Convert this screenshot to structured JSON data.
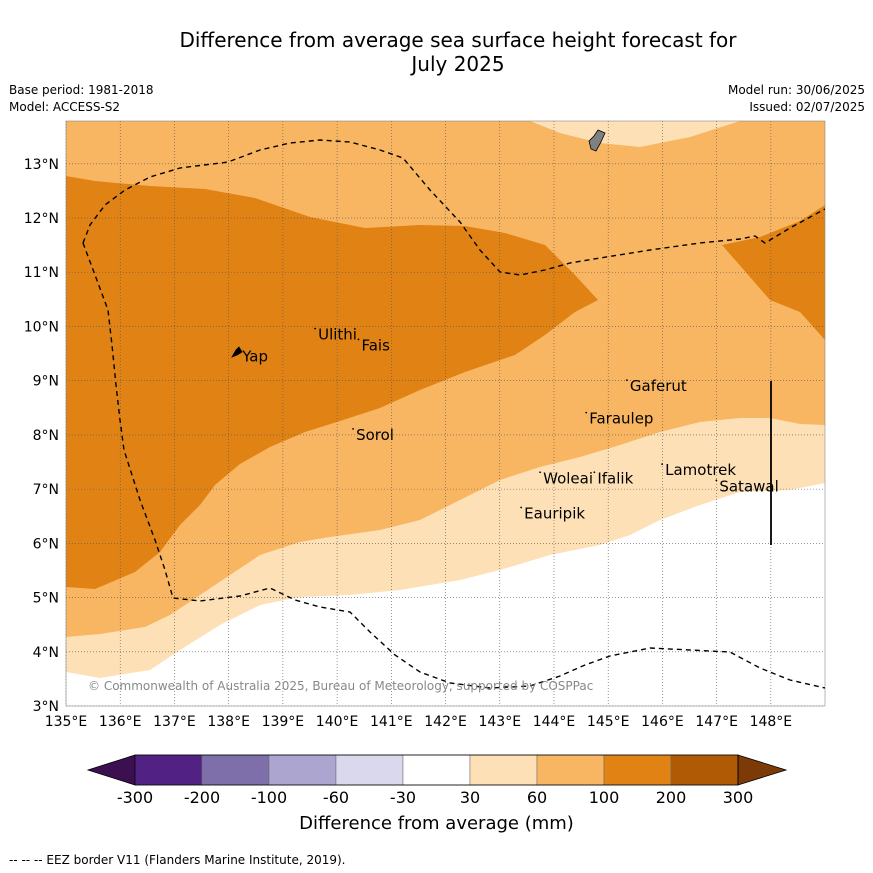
{
  "title_line1": "Difference from average sea surface height forecast for",
  "title_line2": "July 2025",
  "base_period": "Base period: 1981-2018",
  "model": "Model: ACCESS-S2",
  "model_run": "Model run: 30/06/2025",
  "issued": "Issued: 02/07/2025",
  "copyright": "© Commonwealth of Australia 2025, Bureau of Meteorology, supported by COSPPac",
  "lon_ticks": [
    "135°E",
    "136°E",
    "137°E",
    "138°E",
    "139°E",
    "140°E",
    "141°E",
    "142°E",
    "143°E",
    "144°E",
    "145°E",
    "146°E",
    "147°E",
    "148°E"
  ],
  "lat_ticks": [
    "3°N",
    "4°N",
    "5°N",
    "6°N",
    "7°N",
    "8°N",
    "9°N",
    "10°N",
    "11°N",
    "12°N",
    "13°N"
  ],
  "places": [
    {
      "name": "Yap",
      "lon": 138.25,
      "lat": 9.45
    },
    {
      "name": "Ulithi",
      "lon": 139.65,
      "lat": 9.85
    },
    {
      "name": "Fais",
      "lon": 140.45,
      "lat": 9.65
    },
    {
      "name": "Sorol",
      "lon": 140.35,
      "lat": 8.0
    },
    {
      "name": "Gaferut",
      "lon": 145.4,
      "lat": 8.9
    },
    {
      "name": "Faraulep",
      "lon": 144.65,
      "lat": 8.3
    },
    {
      "name": "Woleai",
      "lon": 143.8,
      "lat": 7.2
    },
    {
      "name": "Ifalik",
      "lon": 144.8,
      "lat": 7.2
    },
    {
      "name": "Lamotrek",
      "lon": 146.05,
      "lat": 7.35
    },
    {
      "name": "Satawal",
      "lon": 147.05,
      "lat": 7.05
    },
    {
      "name": "Eauripik",
      "lon": 143.45,
      "lat": 6.55
    }
  ],
  "colorbar": {
    "ticks": [
      "-300",
      "-200",
      "-100",
      "-60",
      "-30",
      "30",
      "60",
      "100",
      "200",
      "300"
    ],
    "colors": [
      "#3b0f50",
      "#512283",
      "#7e6fab",
      "#aca5d0",
      "#d9d8ec",
      "#ffffff",
      "#fee0b6",
      "#f9b662",
      "#e08314",
      "#b05a06",
      "#7c3a06"
    ],
    "label": "Difference from average (mm)"
  },
  "footer": "--  --  -- EEZ border V11 (Flanders Marine Institute, 2019)."
}
